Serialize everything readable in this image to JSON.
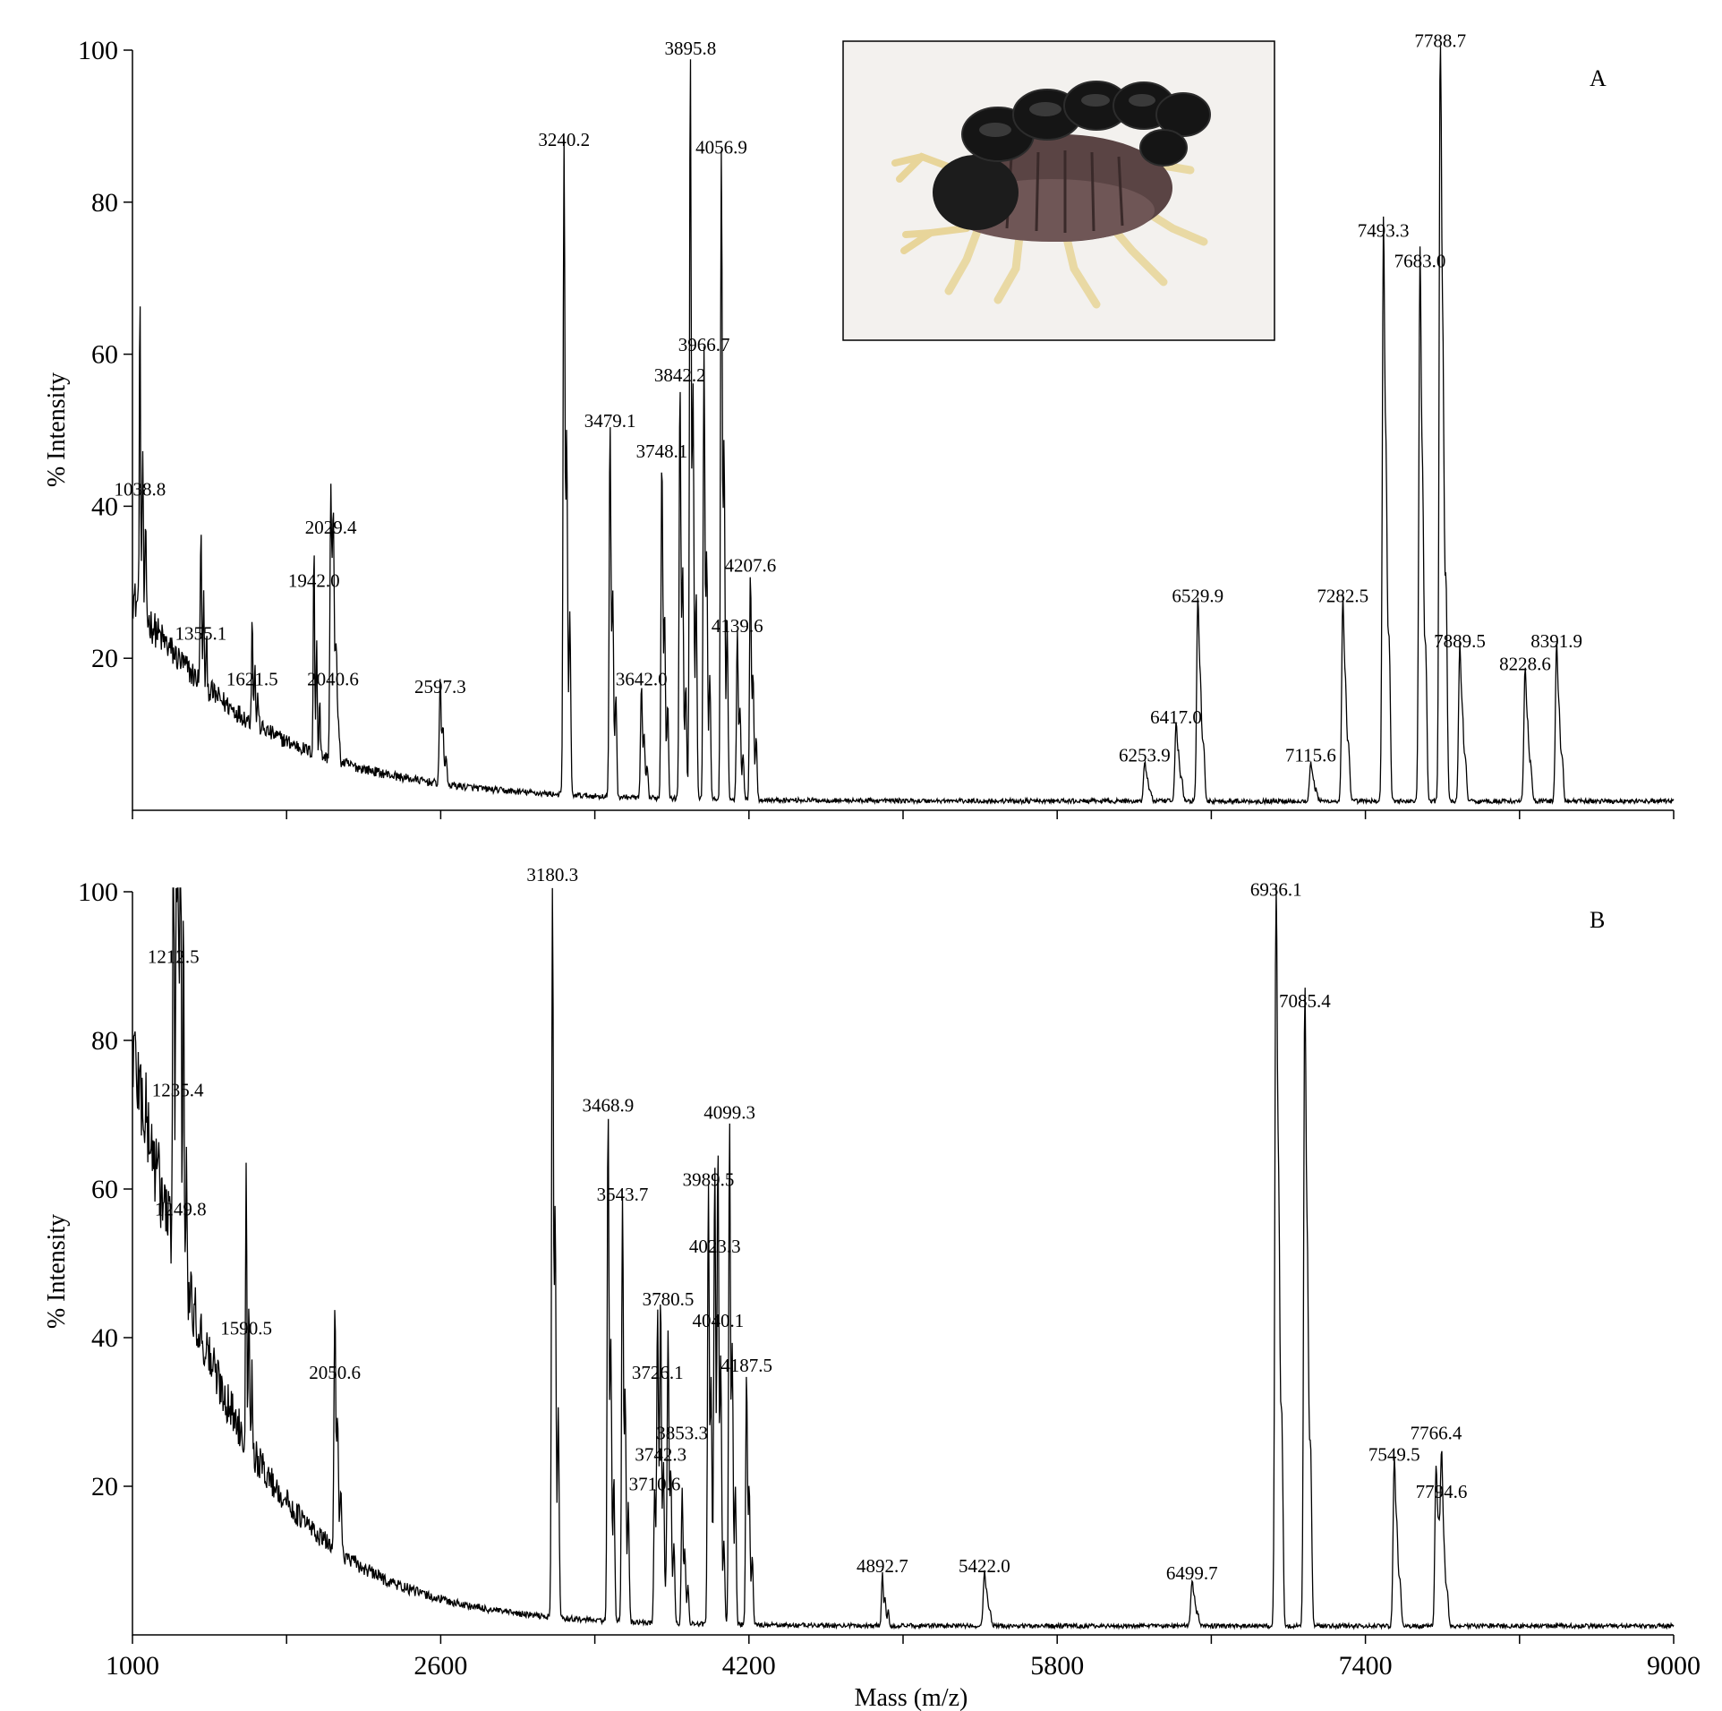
{
  "chart_data": [
    {
      "type": "line",
      "panel_label": "A",
      "xlabel": "",
      "ylabel": "% Intensity",
      "xlim": [
        1000,
        9000
      ],
      "ylim": [
        0,
        100
      ],
      "xticks": [
        1000,
        1800,
        2600,
        3400,
        4200,
        5000,
        5800,
        6600,
        7400,
        8200,
        9000
      ],
      "show_x_tick_labels": false,
      "yticks": [
        20,
        40,
        60,
        80,
        100
      ],
      "grid": false,
      "inset_image": "scorpion-photo",
      "peaks": [
        {
          "mz": 1038.8,
          "intensity": 40,
          "label": "1038.8"
        },
        {
          "mz": 1355.1,
          "intensity": 21,
          "label": "1355.1"
        },
        {
          "mz": 1621.5,
          "intensity": 15,
          "label": "1621.5"
        },
        {
          "mz": 1942.0,
          "intensity": 28,
          "label": "1942.0"
        },
        {
          "mz": 2029.4,
          "intensity": 35,
          "label": "2029.4"
        },
        {
          "mz": 2040.6,
          "intensity": 15,
          "label": "2040.6"
        },
        {
          "mz": 2597.3,
          "intensity": 14,
          "label": "2597.3"
        },
        {
          "mz": 3240.2,
          "intensity": 86,
          "label": "3240.2"
        },
        {
          "mz": 3479.1,
          "intensity": 49,
          "label": "3479.1"
        },
        {
          "mz": 3642.0,
          "intensity": 15,
          "label": "3642.0"
        },
        {
          "mz": 3748.1,
          "intensity": 45,
          "label": "3748.1"
        },
        {
          "mz": 3842.2,
          "intensity": 55,
          "label": "3842.2"
        },
        {
          "mz": 3895.8,
          "intensity": 98,
          "label": "3895.8"
        },
        {
          "mz": 3966.7,
          "intensity": 59,
          "label": "3966.7"
        },
        {
          "mz": 4056.9,
          "intensity": 85,
          "label": "4056.9"
        },
        {
          "mz": 4139.6,
          "intensity": 22,
          "label": "4139.6"
        },
        {
          "mz": 4207.6,
          "intensity": 30,
          "label": "4207.6"
        },
        {
          "mz": 6253.9,
          "intensity": 5,
          "label": "6253.9"
        },
        {
          "mz": 6417.0,
          "intensity": 10,
          "label": "6417.0"
        },
        {
          "mz": 6529.9,
          "intensity": 26,
          "label": "6529.9"
        },
        {
          "mz": 7115.6,
          "intensity": 5,
          "label": "7115.6"
        },
        {
          "mz": 7282.5,
          "intensity": 26,
          "label": "7282.5"
        },
        {
          "mz": 7493.3,
          "intensity": 74,
          "label": "7493.3"
        },
        {
          "mz": 7683.0,
          "intensity": 70,
          "label": "7683.0"
        },
        {
          "mz": 7788.7,
          "intensity": 99,
          "label": "7788.7"
        },
        {
          "mz": 7889.5,
          "intensity": 20,
          "label": "7889.5"
        },
        {
          "mz": 8228.6,
          "intensity": 17,
          "label": "8228.6"
        },
        {
          "mz": 8391.9,
          "intensity": 20,
          "label": "8391.9"
        }
      ]
    },
    {
      "type": "line",
      "panel_label": "B",
      "xlabel": "Mass (m/z)",
      "ylabel": "% Intensity",
      "xlim": [
        1000,
        9000
      ],
      "ylim": [
        0,
        100
      ],
      "xticks": [
        1000,
        1800,
        2600,
        3400,
        4200,
        5000,
        5800,
        6600,
        7400,
        8200,
        9000
      ],
      "xtick_labels": [
        "1000",
        "",
        "2600",
        "",
        "4200",
        "",
        "5800",
        "",
        "7400",
        "",
        "9000"
      ],
      "show_x_tick_labels": true,
      "yticks": [
        20,
        40,
        60,
        80,
        100
      ],
      "grid": false,
      "peaks": [
        {
          "mz": 1212.5,
          "intensity": 89,
          "label": "1212.5"
        },
        {
          "mz": 1235.4,
          "intensity": 71,
          "label": "1235.4"
        },
        {
          "mz": 1249.8,
          "intensity": 55,
          "label": "1249.8"
        },
        {
          "mz": 1590.5,
          "intensity": 39,
          "label": "1590.5"
        },
        {
          "mz": 2050.6,
          "intensity": 33,
          "label": "2050.6"
        },
        {
          "mz": 3180.3,
          "intensity": 100,
          "label": "3180.3"
        },
        {
          "mz": 3468.9,
          "intensity": 69,
          "label": "3468.9"
        },
        {
          "mz": 3543.7,
          "intensity": 57,
          "label": "3543.7"
        },
        {
          "mz": 3710.6,
          "intensity": 18,
          "label": "3710.6"
        },
        {
          "mz": 3726.1,
          "intensity": 33,
          "label": "3726.1"
        },
        {
          "mz": 3742.3,
          "intensity": 22,
          "label": "3742.3"
        },
        {
          "mz": 3780.5,
          "intensity": 38,
          "label": "3780.5"
        },
        {
          "mz": 3853.3,
          "intensity": 18,
          "label": "3853.3"
        },
        {
          "mz": 3989.5,
          "intensity": 59,
          "label": "3989.5"
        },
        {
          "mz": 4023.3,
          "intensity": 50,
          "label": "4023.3"
        },
        {
          "mz": 4040.1,
          "intensity": 40,
          "label": "4040.1"
        },
        {
          "mz": 4099.3,
          "intensity": 68,
          "label": "4099.3"
        },
        {
          "mz": 4187.5,
          "intensity": 34,
          "label": "4187.5"
        },
        {
          "mz": 4892.7,
          "intensity": 7,
          "label": "4892.7"
        },
        {
          "mz": 5422.0,
          "intensity": 7,
          "label": "5422.0"
        },
        {
          "mz": 6499.7,
          "intensity": 6,
          "label": "6499.7"
        },
        {
          "mz": 6936.1,
          "intensity": 98,
          "label": "6936.1"
        },
        {
          "mz": 7085.4,
          "intensity": 83,
          "label": "7085.4"
        },
        {
          "mz": 7549.5,
          "intensity": 22,
          "label": "7549.5"
        },
        {
          "mz": 7766.4,
          "intensity": 21,
          "label": "7766.4"
        },
        {
          "mz": 7794.6,
          "intensity": 17,
          "label": "7794.6"
        }
      ]
    }
  ]
}
